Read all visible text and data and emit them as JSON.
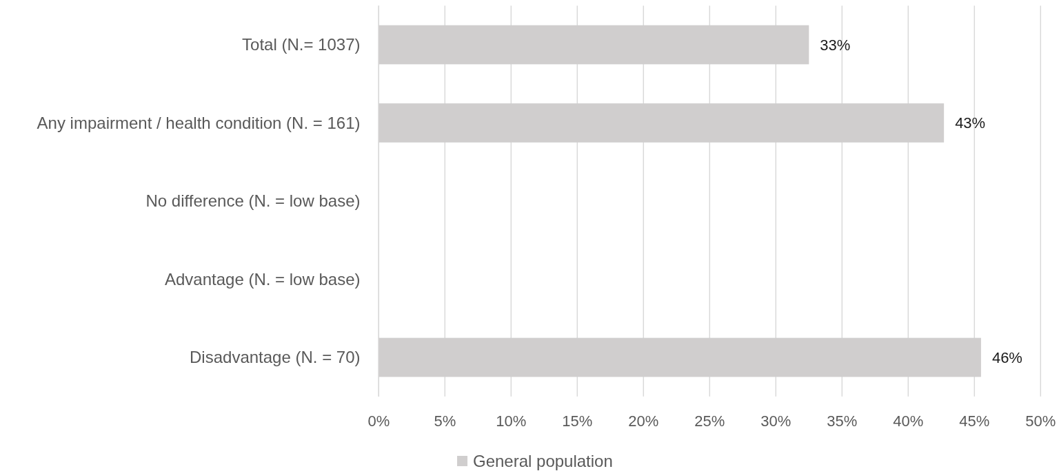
{
  "chart_data": {
    "type": "bar",
    "orientation": "horizontal",
    "categories": [
      "Total (N.= 1037)",
      "Any impairment / health condition (N. = 161)",
      "No difference (N. = low base)",
      "Advantage (N. = low base)",
      "Disadvantage (N. = 70)"
    ],
    "series": [
      {
        "name": "General population",
        "color": "#d0cece",
        "values": [
          32.5,
          42.7,
          null,
          null,
          45.5
        ],
        "value_labels": [
          "33%",
          "43%",
          null,
          null,
          "46%"
        ]
      }
    ],
    "xlim": [
      0,
      50
    ],
    "xticks": [
      {
        "value": 0,
        "label": "0%"
      },
      {
        "value": 5,
        "label": "5%"
      },
      {
        "value": 10,
        "label": "10%"
      },
      {
        "value": 15,
        "label": "15%"
      },
      {
        "value": 20,
        "label": "20%"
      },
      {
        "value": 25,
        "label": "25%"
      },
      {
        "value": 30,
        "label": "30%"
      },
      {
        "value": 35,
        "label": "35%"
      },
      {
        "value": 40,
        "label": "40%"
      },
      {
        "value": 45,
        "label": "45%"
      },
      {
        "value": 50,
        "label": "50%"
      }
    ],
    "grid": "x",
    "legend": "bottom"
  }
}
